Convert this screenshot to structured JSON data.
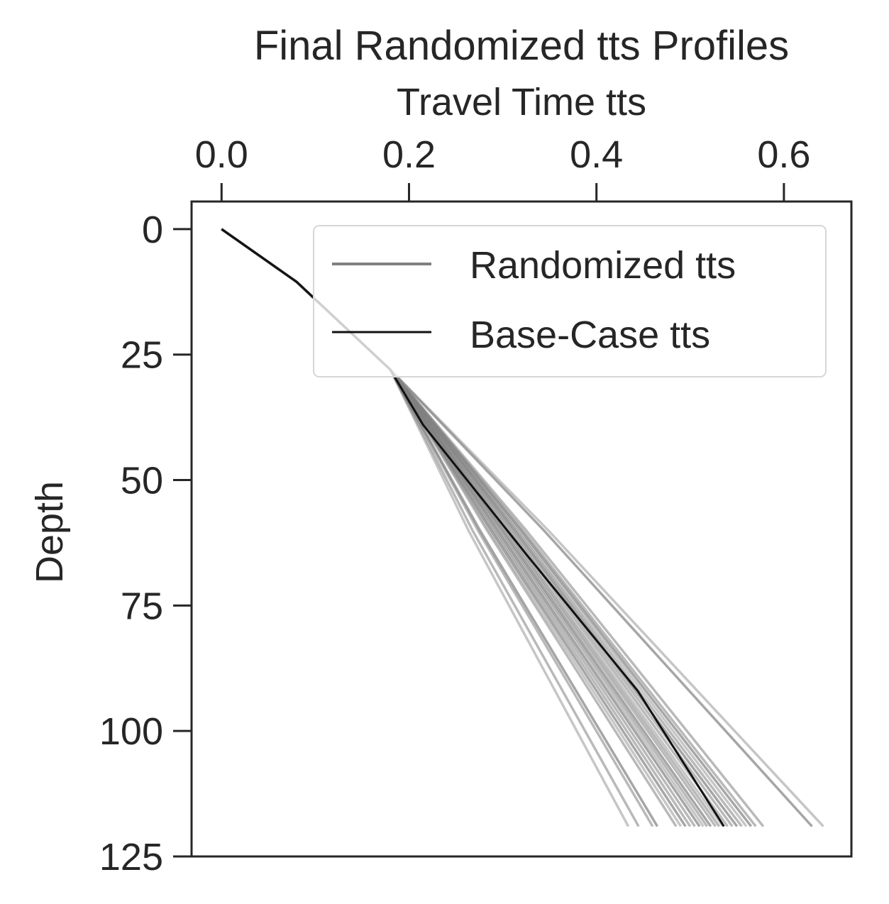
{
  "chart_data": {
    "type": "line",
    "title": "Final Randomized tts Profiles",
    "xlabel": "Travel Time tts",
    "ylabel": "Depth",
    "x_axis_position": "top",
    "y_inverted": true,
    "xlim": [
      -0.032,
      0.672
    ],
    "ylim": [
      125,
      -5.5
    ],
    "x_ticks": [
      "0.0",
      "0.2",
      "0.4",
      "0.6"
    ],
    "x_tick_values": [
      0.0,
      0.2,
      0.4,
      0.6
    ],
    "y_ticks": [
      "0",
      "25",
      "50",
      "75",
      "100",
      "125"
    ],
    "y_tick_values": [
      0,
      25,
      50,
      75,
      100,
      125
    ],
    "grid": false,
    "legend": {
      "placement": "top-right",
      "entries": [
        {
          "label": "Randomized tts",
          "color": "#808080"
        },
        {
          "label": "Base-Case tts",
          "color": "#111111"
        }
      ]
    },
    "base_case": {
      "name": "Base-Case tts",
      "color": "#111111",
      "points": [
        [
          0.0,
          0
        ],
        [
          0.08,
          10.5
        ],
        [
          0.18,
          28
        ],
        [
          0.215,
          39
        ],
        [
          0.326,
          65
        ],
        [
          0.444,
          92
        ],
        [
          0.536,
          119
        ]
      ]
    },
    "randomized": {
      "name": "Randomized tts",
      "color": "#808080",
      "start_points": [
        [
          0.0,
          0
        ],
        [
          0.08,
          10.5
        ],
        [
          0.18,
          28
        ]
      ],
      "end_depth": 119,
      "end_times": [
        0.434,
        0.445,
        0.46,
        0.465,
        0.485,
        0.49,
        0.495,
        0.5,
        0.505,
        0.51,
        0.514,
        0.518,
        0.522,
        0.527,
        0.531,
        0.535,
        0.54,
        0.545,
        0.55,
        0.555,
        0.56,
        0.565,
        0.57,
        0.578,
        0.63,
        0.642
      ]
    }
  }
}
